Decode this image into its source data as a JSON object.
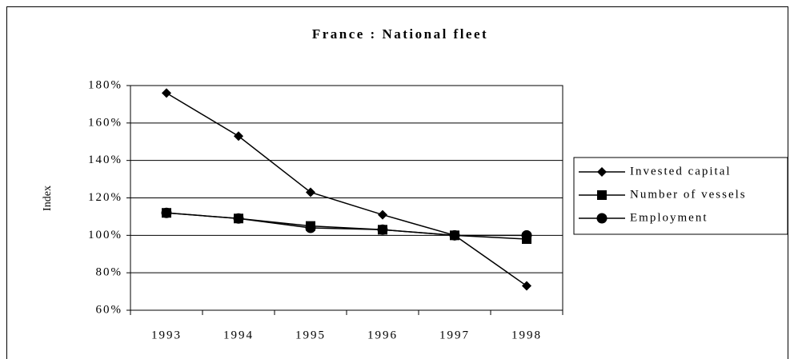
{
  "chart_data": {
    "type": "line",
    "title": "France : National fleet",
    "y_label": "Index",
    "categories": [
      "1993",
      "1994",
      "1995",
      "1996",
      "1997",
      "1998"
    ],
    "series": [
      {
        "name": "Invested capital",
        "color": "#000000",
        "marker": "diamond",
        "values": [
          176,
          153,
          123,
          111,
          100,
          73
        ]
      },
      {
        "name": "Number of vessels",
        "color": "#000000",
        "marker": "square",
        "values": [
          112,
          109,
          105,
          103,
          100,
          98
        ]
      },
      {
        "name": "Employment",
        "color": "#000000",
        "marker": "circle",
        "values": [
          112,
          109,
          104,
          103,
          100,
          100
        ]
      }
    ],
    "ylim": [
      60,
      180
    ],
    "yticks": [
      {
        "value": 60,
        "label": "60%"
      },
      {
        "value": 80,
        "label": "80%"
      },
      {
        "value": 100,
        "label": "100%"
      },
      {
        "value": 120,
        "label": "120%"
      },
      {
        "value": 140,
        "label": "140%"
      },
      {
        "value": 160,
        "label": "160%"
      },
      {
        "value": 180,
        "label": "180%"
      }
    ],
    "grid": true,
    "legend": "right"
  }
}
